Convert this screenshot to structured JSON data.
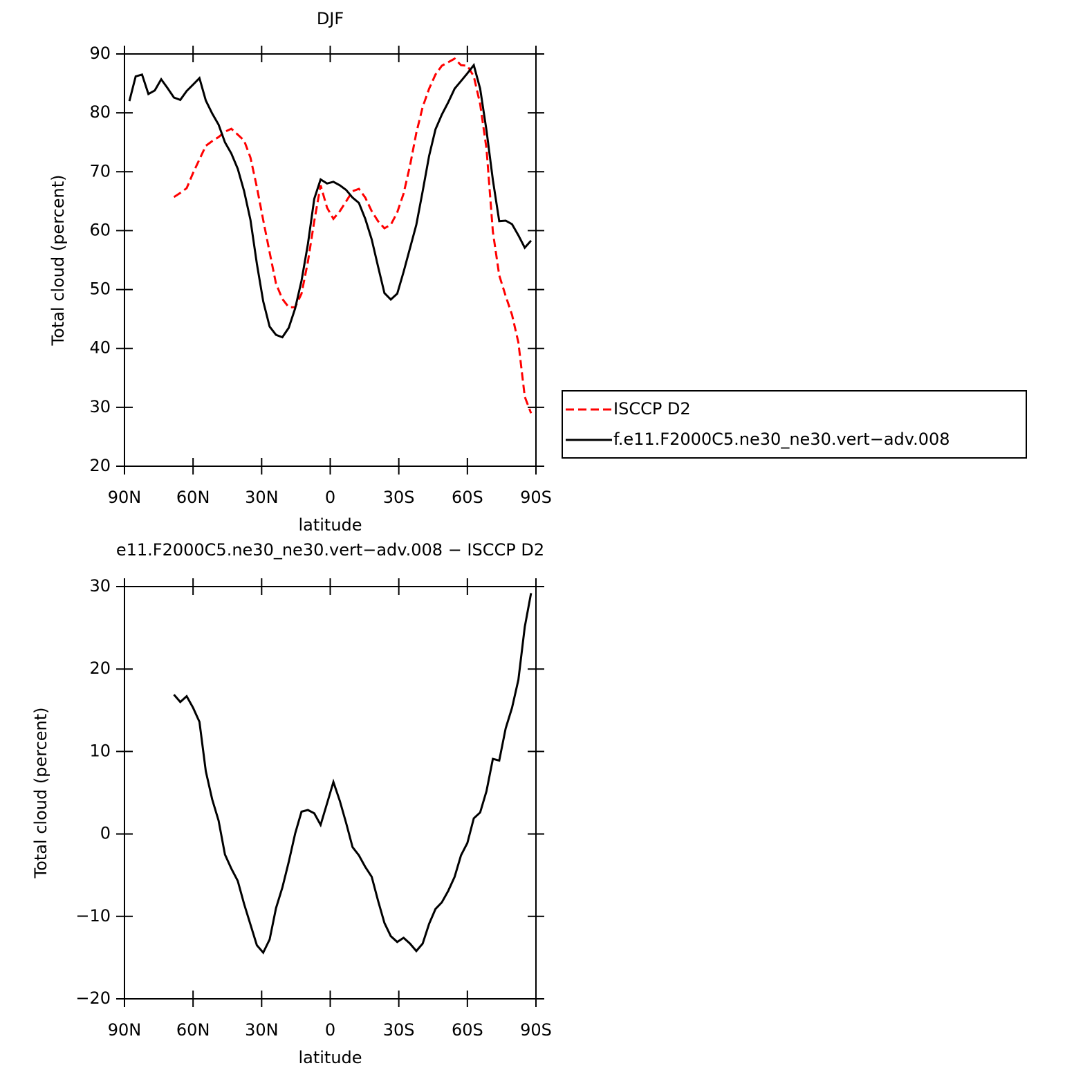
{
  "chart_data": [
    {
      "type": "line",
      "title": "DJF",
      "xlabel": "latitude",
      "ylabel": "Total cloud (percent)",
      "x": [
        87.86,
        85.1,
        82.31,
        79.53,
        76.74,
        73.95,
        71.16,
        68.37,
        65.58,
        62.79,
        60,
        57.21,
        54.42,
        51.63,
        48.84,
        46.04,
        43.25,
        40.46,
        37.67,
        34.88,
        32.09,
        29.3,
        26.51,
        23.72,
        20.93,
        18.14,
        15.35,
        12.56,
        9.77,
        6.98,
        4.19,
        1.4,
        -1.4,
        -4.19,
        -6.98,
        -9.77,
        -12.56,
        -15.35,
        -18.14,
        -20.93,
        -23.72,
        -26.51,
        -29.3,
        -32.09,
        -34.88,
        -37.67,
        -40.46,
        -43.25,
        -46.04,
        -48.84,
        -51.63,
        -54.42,
        -57.21,
        -60,
        -62.79,
        -65.58,
        -68.37,
        -71.16,
        -73.95,
        -76.74,
        -79.53,
        -82.31,
        -85.1,
        -87.86
      ],
      "series": [
        {
          "name": "ISCCP D2",
          "color": "#ff0000",
          "linestyle": "dashed",
          "values": [
            null,
            null,
            null,
            null,
            null,
            null,
            null,
            65.7,
            66.4,
            67.2,
            69.8,
            72.1,
            74.4,
            75.2,
            75.9,
            76.8,
            77.3,
            76.3,
            75.3,
            72.4,
            67.4,
            61.8,
            56.3,
            51.0,
            48.4,
            47.0,
            47.0,
            49.3,
            54.7,
            61.6,
            67.7,
            63.9,
            62.0,
            63.3,
            65.0,
            66.7,
            67.1,
            65.6,
            63.3,
            61.6,
            60.4,
            61.0,
            63.1,
            66.3,
            71.0,
            76.6,
            81.0,
            84.1,
            86.5,
            88.0,
            88.6,
            89.2,
            88.1,
            88.0,
            86.2,
            81.5,
            73.9,
            59.8,
            52.4,
            48.9,
            45.7,
            41.0,
            31.8,
            29.0
          ]
        },
        {
          "name": "f.e11.F2000C5.ne30_ne30.vert−adv.008",
          "color": "#000000",
          "linestyle": "solid",
          "values": [
            82.0,
            86.2,
            86.5,
            83.2,
            83.8,
            85.7,
            84.2,
            82.6,
            82.2,
            83.7,
            84.8,
            85.9,
            82.1,
            79.9,
            78.0,
            75.0,
            73.1,
            70.5,
            66.7,
            61.8,
            54.4,
            48.0,
            43.7,
            42.3,
            41.9,
            43.5,
            46.8,
            51.5,
            57.7,
            65.4,
            68.7,
            68.0,
            68.3,
            67.7,
            66.9,
            65.6,
            64.7,
            62.0,
            58.5,
            53.9,
            49.4,
            48.3,
            49.3,
            53.0,
            57.0,
            61.0,
            66.7,
            72.7,
            77.2,
            79.7,
            81.8,
            84.1,
            85.4,
            86.7,
            88.1,
            84.1,
            77.0,
            68.6,
            61.6,
            61.7,
            61.1,
            59.2,
            57.1,
            58.3
          ]
        }
      ],
      "xlim": [
        90,
        -90
      ],
      "xticks": [
        {
          "value": 90,
          "label": "90N"
        },
        {
          "value": 60,
          "label": "60N"
        },
        {
          "value": 30,
          "label": "30N"
        },
        0,
        {
          "value": -30,
          "label": "30S"
        },
        {
          "value": -60,
          "label": "60S"
        },
        {
          "value": -90,
          "label": "90S"
        }
      ],
      "ylim": [
        20,
        90
      ],
      "yticks": [
        20,
        30,
        40,
        50,
        60,
        70,
        80,
        90
      ],
      "legend": "right"
    },
    {
      "type": "line",
      "title": "e11.F2000C5.ne30_ne30.vert−adv.008 − ISCCP D2",
      "xlabel": "latitude",
      "ylabel": "Total cloud (percent)",
      "x": [
        87.86,
        85.1,
        82.31,
        79.53,
        76.74,
        73.95,
        71.16,
        68.37,
        65.58,
        62.79,
        60,
        57.21,
        54.42,
        51.63,
        48.84,
        46.04,
        43.25,
        40.46,
        37.67,
        34.88,
        32.09,
        29.3,
        26.51,
        23.72,
        20.93,
        18.14,
        15.35,
        12.56,
        9.77,
        6.98,
        4.19,
        1.4,
        -1.4,
        -4.19,
        -6.98,
        -9.77,
        -12.56,
        -15.35,
        -18.14,
        -20.93,
        -23.72,
        -26.51,
        -29.3,
        -32.09,
        -34.88,
        -37.67,
        -40.46,
        -43.25,
        -46.04,
        -48.84,
        -51.63,
        -54.42,
        -57.21,
        -60,
        -62.79,
        -65.58,
        -68.37,
        -71.16,
        -73.95,
        -76.74,
        -79.53,
        -82.31,
        -85.1,
        -87.86
      ],
      "series": [
        {
          "color": "#000000",
          "linestyle": "solid",
          "values": [
            null,
            null,
            null,
            null,
            null,
            null,
            null,
            16.9,
            16.0,
            16.7,
            15.3,
            13.6,
            7.6,
            4.2,
            1.6,
            -2.5,
            -4.2,
            -5.7,
            -8.5,
            -11.0,
            -13.5,
            -14.4,
            -12.8,
            -9.0,
            -6.5,
            -3.4,
            0.05,
            2.7,
            2.9,
            2.5,
            1.1,
            3.7,
            6.3,
            4.0,
            1.3,
            -1.6,
            -2.6,
            -4.0,
            -5.2,
            -8.1,
            -10.8,
            -12.4,
            -13.1,
            -12.6,
            -13.3,
            -14.2,
            -13.3,
            -10.9,
            -9.1,
            -8.3,
            -6.9,
            -5.2,
            -2.6,
            -1.1,
            1.9,
            2.6,
            5.2,
            9.1,
            8.9,
            12.8,
            15.3,
            18.7,
            25.1,
            29.2
          ]
        }
      ],
      "xlim": [
        90,
        -90
      ],
      "xticks": [
        {
          "value": 90,
          "label": "90N"
        },
        {
          "value": 60,
          "label": "60N"
        },
        {
          "value": 30,
          "label": "30N"
        },
        0,
        {
          "value": -30,
          "label": "30S"
        },
        {
          "value": -60,
          "label": "60S"
        },
        {
          "value": -90,
          "label": "90S"
        }
      ],
      "ylim": [
        -20,
        30
      ],
      "yticks": [
        {
          "value": -20,
          "label": "−20"
        },
        {
          "value": -10,
          "label": "−10"
        },
        0,
        10,
        20,
        30
      ]
    }
  ]
}
